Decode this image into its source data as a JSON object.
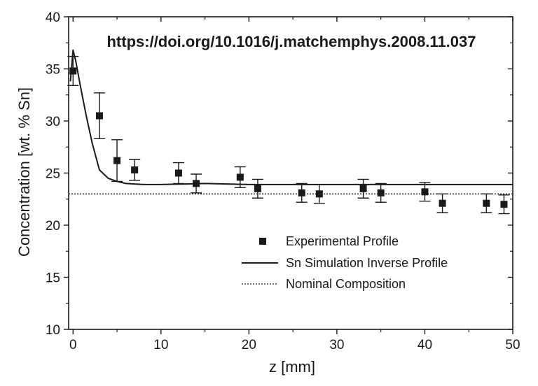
{
  "chart_data": {
    "type": "scatter",
    "title": "",
    "watermark": "https://doi.org/10.1016/j.matchemphys.2008.11.037",
    "xlabel": "z [mm]",
    "ylabel": "Concentration [wt. % Sn]",
    "xlim": [
      -0.5,
      50
    ],
    "ylim": [
      10,
      40
    ],
    "xticks": [
      0,
      10,
      20,
      30,
      40,
      50
    ],
    "yticks": [
      10,
      15,
      20,
      25,
      30,
      35,
      40
    ],
    "grid": false,
    "legend_position": "lower-center",
    "series": [
      {
        "name": "Experimental Profile",
        "kind": "scatter-errorbar",
        "marker": "square",
        "points": [
          {
            "x": 0,
            "y": 34.8,
            "err": 1.4
          },
          {
            "x": 3,
            "y": 30.5,
            "err": 2.2
          },
          {
            "x": 5,
            "y": 26.2,
            "err": 2.0
          },
          {
            "x": 7,
            "y": 25.3,
            "err": 1.0
          },
          {
            "x": 12,
            "y": 25.0,
            "err": 1.0
          },
          {
            "x": 14,
            "y": 24.0,
            "err": 0.9
          },
          {
            "x": 19,
            "y": 24.6,
            "err": 1.0
          },
          {
            "x": 21,
            "y": 23.5,
            "err": 0.9
          },
          {
            "x": 26,
            "y": 23.1,
            "err": 0.9
          },
          {
            "x": 28,
            "y": 23.0,
            "err": 0.9
          },
          {
            "x": 33,
            "y": 23.5,
            "err": 0.9
          },
          {
            "x": 35,
            "y": 23.1,
            "err": 0.9
          },
          {
            "x": 40,
            "y": 23.2,
            "err": 0.9
          },
          {
            "x": 42,
            "y": 22.1,
            "err": 0.9
          },
          {
            "x": 47,
            "y": 22.1,
            "err": 0.9
          },
          {
            "x": 49,
            "y": 22.0,
            "err": 0.9
          }
        ]
      },
      {
        "name": "Sn Simulation Inverse Profile",
        "kind": "line",
        "style": "solid",
        "x": [
          -0.3,
          0,
          0.3,
          0.8,
          1.5,
          2.2,
          3.0,
          4.0,
          5.0,
          6.0,
          8.0,
          10,
          15,
          20,
          25,
          30,
          35,
          40,
          45,
          50
        ],
        "y": [
          33.8,
          36.8,
          35.8,
          33.5,
          30.5,
          27.8,
          25.3,
          24.5,
          24.2,
          24.0,
          23.9,
          23.9,
          24.0,
          23.9,
          23.9,
          23.9,
          23.9,
          23.9,
          23.9,
          23.9
        ]
      },
      {
        "name": "Nominal Composition",
        "kind": "line",
        "style": "dotted",
        "x": [
          -0.5,
          50
        ],
        "y": [
          23.0,
          23.0
        ]
      }
    ],
    "colors": {
      "axis": "#1a1a1a",
      "series": "#1a1a1a"
    }
  }
}
